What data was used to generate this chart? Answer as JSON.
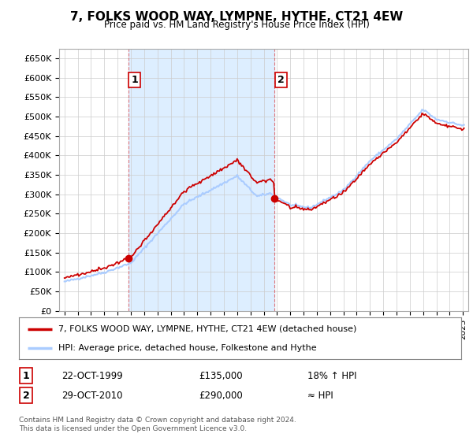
{
  "title": "7, FOLKS WOOD WAY, LYMPNE, HYTHE, CT21 4EW",
  "subtitle": "Price paid vs. HM Land Registry's House Price Index (HPI)",
  "ylim": [
    0,
    675000
  ],
  "yticks": [
    0,
    50000,
    100000,
    150000,
    200000,
    250000,
    300000,
    350000,
    400000,
    450000,
    500000,
    550000,
    600000,
    650000
  ],
  "ytick_labels": [
    "£0",
    "£50K",
    "£100K",
    "£150K",
    "£200K",
    "£250K",
    "£300K",
    "£350K",
    "£400K",
    "£450K",
    "£500K",
    "£550K",
    "£600K",
    "£650K"
  ],
  "hpi_color": "#aaccff",
  "price_color": "#cc0000",
  "marker_color": "#cc0000",
  "shade_color": "#ddeeff",
  "sale1_x": 1999.81,
  "sale1_y": 135000,
  "sale1_label": "1",
  "sale2_x": 2010.83,
  "sale2_y": 290000,
  "sale2_label": "2",
  "vline_color": "#dd4444",
  "vline_alpha": 0.7,
  "grid_color": "#cccccc",
  "background_color": "#ffffff",
  "legend_line1": "7, FOLKS WOOD WAY, LYMPNE, HYTHE, CT21 4EW (detached house)",
  "legend_line2": "HPI: Average price, detached house, Folkestone and Hythe",
  "table_row1": [
    "1",
    "22-OCT-1999",
    "£135,000",
    "18% ↑ HPI"
  ],
  "table_row2": [
    "2",
    "29-OCT-2010",
    "£290,000",
    "≈ HPI"
  ],
  "footer": "Contains HM Land Registry data © Crown copyright and database right 2024.\nThis data is licensed under the Open Government Licence v3.0.",
  "xlim_start": 1994.6,
  "xlim_end": 2025.4
}
